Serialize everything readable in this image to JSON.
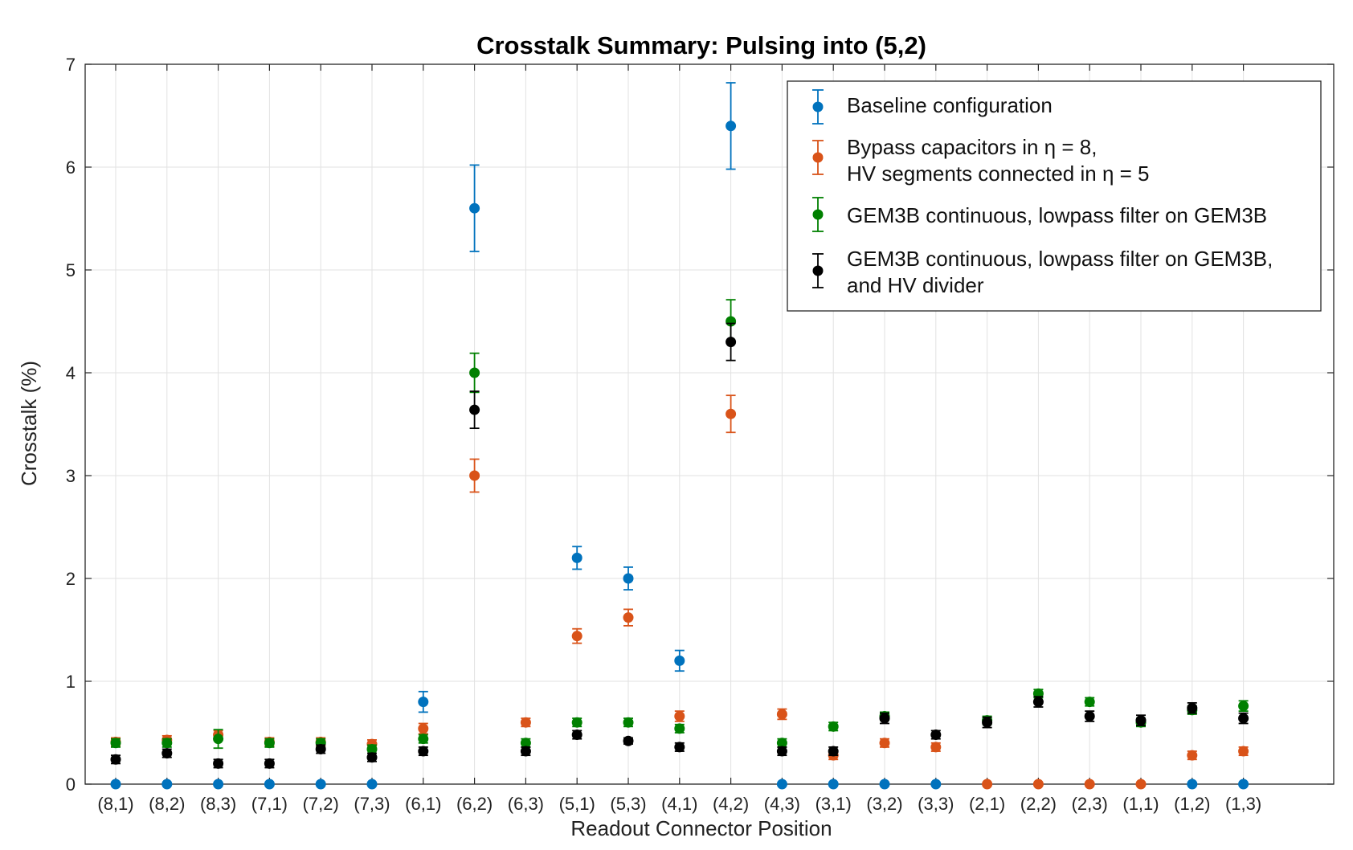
{
  "chart_data": {
    "type": "scatter",
    "title": "Crosstalk Summary: Pulsing into (5,2)",
    "xlabel": "Readout Connector Position",
    "ylabel": "Crosstalk (%)",
    "ylim": [
      0,
      7
    ],
    "yticks": [
      "0",
      "1",
      "2",
      "3",
      "4",
      "5",
      "6",
      "7"
    ],
    "grid": true,
    "legend_position": "top-right",
    "categories": [
      "(8,1)",
      "(8,2)",
      "(8,3)",
      "(7,1)",
      "(7,2)",
      "(7,3)",
      "(6,1)",
      "(6,2)",
      "(6,3)",
      "(5,1)",
      "(5,3)",
      "(4,1)",
      "(4,2)",
      "(4,3)",
      "(3,1)",
      "(3,2)",
      "(3,3)",
      "(2,1)",
      "(2,2)",
      "(2,3)",
      "(1,1)",
      "(1,2)",
      "(1,3)"
    ],
    "series": [
      {
        "name": "Baseline configuration",
        "color": "#0072BD",
        "values": [
          0,
          0,
          0,
          0,
          0,
          0,
          0.8,
          5.6,
          null,
          2.2,
          2.0,
          1.2,
          6.4,
          0,
          0,
          0,
          0,
          null,
          null,
          null,
          null,
          0,
          0
        ],
        "errors": [
          0,
          0,
          0,
          0,
          0,
          0,
          0.1,
          0.42,
          null,
          0.11,
          0.11,
          0.1,
          0.42,
          0,
          0,
          0,
          0,
          null,
          null,
          null,
          null,
          0,
          0
        ]
      },
      {
        "name_line1": "Bypass capacitors in η = 8,",
        "name_line2": "HV segments connected in η = 5",
        "color": "#D95319",
        "values": [
          0.41,
          0.43,
          0.48,
          0.41,
          0.41,
          0.39,
          0.54,
          3.0,
          0.6,
          1.44,
          1.62,
          0.66,
          3.6,
          0.68,
          0.28,
          0.4,
          0.36,
          0,
          0,
          0,
          0,
          0.28,
          0.32
        ],
        "errors": [
          0.04,
          0.04,
          0.04,
          0.04,
          0.04,
          0.04,
          0.05,
          0.16,
          0.04,
          0.07,
          0.08,
          0.05,
          0.18,
          0.05,
          0.04,
          0.04,
          0.04,
          0,
          0,
          0,
          0,
          0.04,
          0.04
        ]
      },
      {
        "name": "GEM3B continuous, lowpass filter on GEM3B",
        "color": "#008000",
        "values": [
          0.4,
          0.4,
          0.44,
          0.4,
          0.4,
          0.34,
          0.44,
          4.0,
          0.4,
          0.6,
          0.6,
          0.54,
          4.5,
          0.4,
          0.56,
          0.66,
          null,
          0.62,
          0.88,
          0.8,
          0.6,
          0.72,
          0.76
        ],
        "errors": [
          0.04,
          0.04,
          0.09,
          0.04,
          0.04,
          0.04,
          0.04,
          0.19,
          0.04,
          0.04,
          0.04,
          0.04,
          0.21,
          0.04,
          0.04,
          0.04,
          null,
          0.04,
          0.04,
          0.04,
          0.04,
          0.04,
          0.05
        ]
      },
      {
        "name_line1": "GEM3B continuous, lowpass filter on GEM3B,",
        "name_line2": "and HV divider",
        "color": "#000000",
        "values": [
          0.24,
          0.3,
          0.2,
          0.2,
          0.34,
          0.26,
          0.32,
          3.64,
          0.32,
          0.48,
          0.42,
          0.36,
          4.3,
          0.32,
          0.32,
          0.64,
          0.48,
          0.6,
          0.8,
          0.66,
          0.62,
          0.74,
          0.64
        ],
        "errors": [
          0.04,
          0.04,
          0.04,
          0.04,
          0.04,
          0.04,
          0.04,
          0.18,
          0.04,
          0.04,
          0.03,
          0.04,
          0.18,
          0.04,
          0.04,
          0.05,
          0.04,
          0.05,
          0.05,
          0.05,
          0.05,
          0.05,
          0.05
        ]
      }
    ]
  }
}
